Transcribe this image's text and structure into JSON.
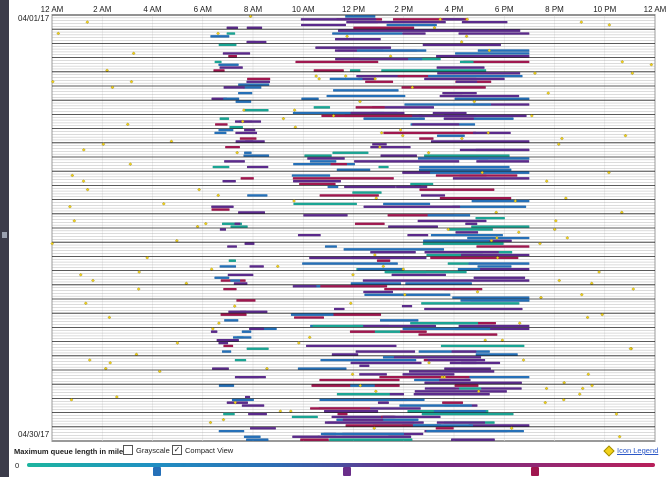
{
  "time_axis": {
    "labels": [
      "12 AM",
      "2 AM",
      "4 AM",
      "6 AM",
      "8 AM",
      "10 AM",
      "12 PM",
      "2 PM",
      "4 PM",
      "6 PM",
      "8 PM",
      "10 PM",
      "12 AM"
    ]
  },
  "dates": {
    "start": "04/01/17",
    "end": "04/30/17"
  },
  "controls": {
    "queue_label": "Maximum queue length in miles",
    "grayscale_label": "Grayscale",
    "grayscale_checked": false,
    "compact_label": "Compact View",
    "compact_checked": true,
    "check_mark": "✓",
    "legend_link": "Icon Legend",
    "zero_label": "0"
  },
  "colors": {
    "teal": "#1aa594",
    "blue": "#2570b8",
    "purple": "#5b2a8c",
    "crimson": "#a0174f",
    "incident_diamond": "#f2d21a"
  },
  "scale_markers": [
    {
      "color": "#2570b8"
    },
    {
      "color": "#6a2e8a"
    },
    {
      "color": "#a0174f"
    }
  ]
}
